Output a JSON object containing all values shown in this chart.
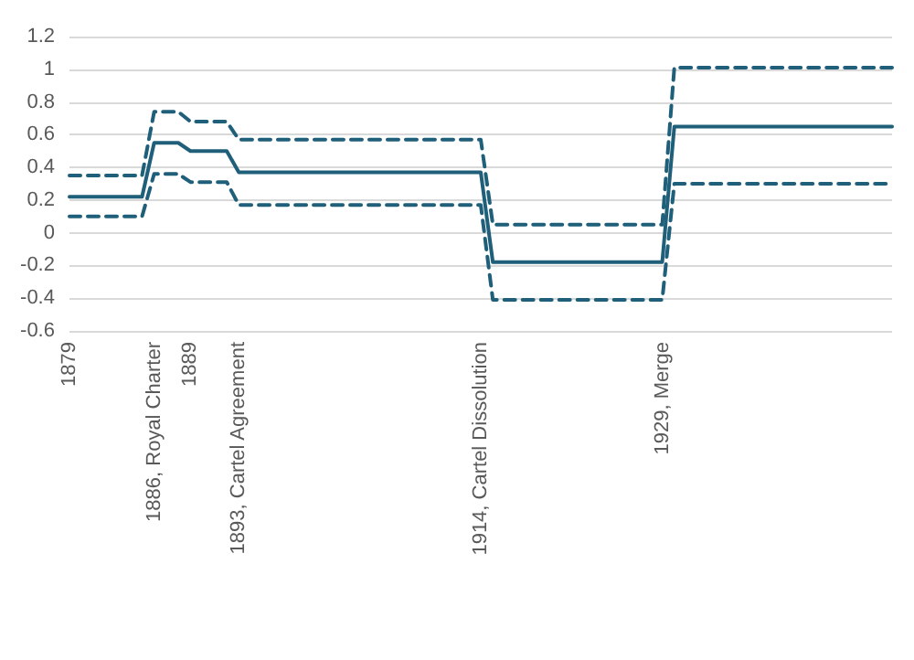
{
  "chart_data": {
    "type": "line",
    "categories": [
      "1879",
      null,
      null,
      null,
      null,
      null,
      null,
      "1886, Royal Charter",
      null,
      null,
      "1889",
      null,
      null,
      null,
      "1893, Cartel Agreement",
      null,
      null,
      null,
      null,
      null,
      null,
      null,
      null,
      null,
      null,
      null,
      null,
      null,
      null,
      null,
      null,
      null,
      null,
      null,
      "1914, Cartel Dissolution",
      null,
      null,
      null,
      null,
      null,
      null,
      null,
      null,
      null,
      null,
      null,
      null,
      null,
      null,
      "1929, Merge",
      null,
      null,
      null,
      null,
      null,
      null,
      null,
      null,
      null,
      null,
      null,
      null,
      null,
      null,
      null,
      null,
      null,
      null,
      null
    ],
    "series": [
      {
        "color": "#1f5f7a",
        "line_style": "solid",
        "values": [
          0.22,
          0.22,
          0.22,
          0.22,
          0.22,
          0.22,
          0.22,
          0.55,
          0.55,
          0.55,
          0.5,
          0.5,
          0.5,
          0.5,
          0.37,
          0.37,
          0.37,
          0.37,
          0.37,
          0.37,
          0.37,
          0.37,
          0.37,
          0.37,
          0.37,
          0.37,
          0.37,
          0.37,
          0.37,
          0.37,
          0.37,
          0.37,
          0.37,
          0.37,
          0.37,
          -0.18,
          -0.18,
          -0.18,
          -0.18,
          -0.18,
          -0.18,
          -0.18,
          -0.18,
          -0.18,
          -0.18,
          -0.18,
          -0.18,
          -0.18,
          -0.18,
          -0.18,
          0.65,
          0.65,
          0.65,
          0.65,
          0.65,
          0.65,
          0.65,
          0.65,
          0.65,
          0.65,
          0.65,
          0.65,
          0.65,
          0.65,
          0.65,
          0.65,
          0.65,
          0.65,
          0.65
        ]
      },
      {
        "color": "#1f5f7a",
        "line_style": "dashed",
        "values": [
          0.35,
          0.35,
          0.35,
          0.35,
          0.35,
          0.35,
          0.35,
          0.74,
          0.74,
          0.74,
          0.68,
          0.68,
          0.68,
          0.68,
          0.57,
          0.57,
          0.57,
          0.57,
          0.57,
          0.57,
          0.57,
          0.57,
          0.57,
          0.57,
          0.57,
          0.57,
          0.57,
          0.57,
          0.57,
          0.57,
          0.57,
          0.57,
          0.57,
          0.57,
          0.57,
          0.05,
          0.05,
          0.05,
          0.05,
          0.05,
          0.05,
          0.05,
          0.05,
          0.05,
          0.05,
          0.05,
          0.05,
          0.05,
          0.05,
          0.05,
          1.01,
          1.01,
          1.01,
          1.01,
          1.01,
          1.01,
          1.01,
          1.01,
          1.01,
          1.01,
          1.01,
          1.01,
          1.01,
          1.01,
          1.01,
          1.01,
          1.01,
          1.01,
          1.01
        ]
      },
      {
        "color": "#1f5f7a",
        "line_style": "dashed",
        "values": [
          0.1,
          0.1,
          0.1,
          0.1,
          0.1,
          0.1,
          0.1,
          0.36,
          0.36,
          0.36,
          0.31,
          0.31,
          0.31,
          0.31,
          0.17,
          0.17,
          0.17,
          0.17,
          0.17,
          0.17,
          0.17,
          0.17,
          0.17,
          0.17,
          0.17,
          0.17,
          0.17,
          0.17,
          0.17,
          0.17,
          0.17,
          0.17,
          0.17,
          0.17,
          0.17,
          -0.41,
          -0.41,
          -0.41,
          -0.41,
          -0.41,
          -0.41,
          -0.41,
          -0.41,
          -0.41,
          -0.41,
          -0.41,
          -0.41,
          -0.41,
          -0.41,
          -0.41,
          0.3,
          0.3,
          0.3,
          0.3,
          0.3,
          0.3,
          0.3,
          0.3,
          0.3,
          0.3,
          0.3,
          0.3,
          0.3,
          0.3,
          0.3,
          0.3,
          0.3,
          0.3,
          0.3
        ]
      }
    ],
    "ylim": [
      -0.6,
      1.2
    ],
    "yticks": [
      -0.6,
      -0.4,
      -0.2,
      0,
      0.2,
      0.4,
      0.6,
      0.8,
      1,
      1.2
    ],
    "grid": "y",
    "marker": "none"
  }
}
